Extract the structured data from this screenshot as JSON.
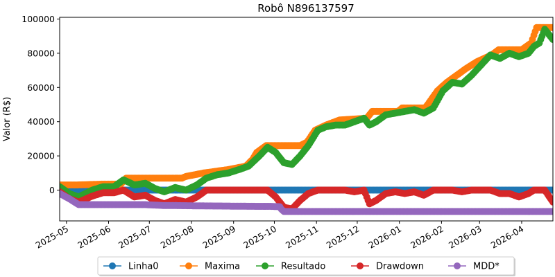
{
  "chart_data": {
    "type": "line",
    "title": "Robô N896137597",
    "xlabel": "",
    "ylabel": "Valor (R$)",
    "xlim": [
      "2025-04-26",
      "2026-04-24"
    ],
    "ylim": [
      -18000,
      101000
    ],
    "x_ticks": [
      "2025-05",
      "2025-06",
      "2025-07",
      "2025-08",
      "2025-09",
      "2025-10",
      "2025-11",
      "2025-12",
      "2026-01",
      "2026-02",
      "2026-03",
      "2026-04"
    ],
    "y_ticks": [
      0,
      20000,
      40000,
      60000,
      80000,
      100000
    ],
    "y_tick_labels": [
      "0",
      "20000",
      "40000",
      "60000",
      "80000",
      "100000"
    ],
    "grid": false,
    "legend_position": "bottom-center",
    "series": [
      {
        "name": "Linha0",
        "color": "#1f77b4",
        "x": [
          "2025-04-26",
          "2026-04-24"
        ],
        "values": [
          0,
          0
        ]
      },
      {
        "name": "Maxima",
        "color": "#ff7f0e",
        "x": [
          "2025-04-26",
          "2025-05-08",
          "2025-05-28",
          "2025-06-10",
          "2025-06-14",
          "2025-07-25",
          "2025-07-28",
          "2025-08-10",
          "2025-08-28",
          "2025-09-10",
          "2025-09-15",
          "2025-09-18",
          "2025-09-25",
          "2025-10-20",
          "2025-10-25",
          "2025-10-31",
          "2025-11-08",
          "2025-11-18",
          "2025-12-08",
          "2025-12-12",
          "2025-12-31",
          "2026-01-03",
          "2026-01-20",
          "2026-01-29",
          "2026-02-05",
          "2026-02-12",
          "2026-02-19",
          "2026-02-27",
          "2026-03-10",
          "2026-03-15",
          "2026-04-01",
          "2026-04-08",
          "2026-04-12",
          "2026-04-24"
        ],
        "values": [
          3000,
          3000,
          3500,
          3500,
          7000,
          7000,
          8000,
          10000,
          12000,
          14000,
          18000,
          22000,
          26000,
          26000,
          28000,
          35000,
          38000,
          41000,
          42000,
          46000,
          46000,
          48000,
          48000,
          58000,
          63000,
          67000,
          71000,
          75000,
          79000,
          82000,
          82000,
          86000,
          95000,
          95000
        ]
      },
      {
        "name": "Resultado",
        "color": "#2ca02c",
        "x": [
          "2025-04-26",
          "2025-05-03",
          "2025-05-10",
          "2025-05-20",
          "2025-05-28",
          "2025-06-05",
          "2025-06-12",
          "2025-06-20",
          "2025-06-28",
          "2025-07-05",
          "2025-07-12",
          "2025-07-20",
          "2025-07-28",
          "2025-08-05",
          "2025-08-12",
          "2025-08-20",
          "2025-08-28",
          "2025-09-05",
          "2025-09-12",
          "2025-09-20",
          "2025-09-26",
          "2025-10-02",
          "2025-10-08",
          "2025-10-14",
          "2025-10-20",
          "2025-10-26",
          "2025-11-02",
          "2025-11-08",
          "2025-11-15",
          "2025-11-22",
          "2025-11-29",
          "2025-12-06",
          "2025-12-10",
          "2025-12-15",
          "2025-12-22",
          "2025-12-29",
          "2026-01-05",
          "2026-01-12",
          "2026-01-19",
          "2026-01-26",
          "2026-02-02",
          "2026-02-09",
          "2026-02-16",
          "2026-02-23",
          "2026-03-02",
          "2026-03-09",
          "2026-03-16",
          "2026-03-23",
          "2026-03-30",
          "2026-04-06",
          "2026-04-10",
          "2026-04-14",
          "2026-04-18",
          "2026-04-24"
        ],
        "values": [
          2000,
          -2000,
          -4000,
          0,
          2000,
          2000,
          6000,
          3000,
          4000,
          1000,
          -1000,
          1500,
          0,
          3000,
          7000,
          9000,
          10000,
          12000,
          14000,
          20000,
          25000,
          22000,
          16000,
          15000,
          20000,
          26000,
          35000,
          37000,
          38000,
          38000,
          40000,
          42000,
          38000,
          40000,
          44000,
          45000,
          46000,
          47000,
          45000,
          48000,
          58000,
          63000,
          62000,
          67000,
          73000,
          79000,
          77000,
          80000,
          78000,
          80000,
          84000,
          86000,
          94000,
          88000
        ]
      },
      {
        "name": "Drawdown",
        "color": "#d62728",
        "x": [
          "2025-04-26",
          "2025-05-03",
          "2025-05-10",
          "2025-05-20",
          "2025-05-28",
          "2025-06-05",
          "2025-06-12",
          "2025-06-20",
          "2025-06-28",
          "2025-07-05",
          "2025-07-12",
          "2025-07-20",
          "2025-07-28",
          "2025-08-05",
          "2025-08-12",
          "2025-08-20",
          "2025-08-28",
          "2025-09-05",
          "2025-09-12",
          "2025-09-20",
          "2025-09-26",
          "2025-10-02",
          "2025-10-08",
          "2025-10-14",
          "2025-10-20",
          "2025-10-26",
          "2025-11-02",
          "2025-11-08",
          "2025-11-15",
          "2025-11-22",
          "2025-11-29",
          "2025-12-06",
          "2025-12-10",
          "2025-12-15",
          "2025-12-22",
          "2025-12-29",
          "2026-01-05",
          "2026-01-12",
          "2026-01-19",
          "2026-01-26",
          "2026-02-02",
          "2026-02-09",
          "2026-02-16",
          "2026-02-23",
          "2026-03-02",
          "2026-03-09",
          "2026-03-16",
          "2026-03-23",
          "2026-03-30",
          "2026-04-06",
          "2026-04-10",
          "2026-04-14",
          "2026-04-18",
          "2026-04-24"
        ],
        "values": [
          -1000,
          -5000,
          -7000,
          -3500,
          -1500,
          -1500,
          0,
          -4000,
          -3000,
          -6000,
          -8000,
          -5500,
          -7000,
          -4000,
          0,
          0,
          0,
          0,
          0,
          0,
          0,
          -4000,
          -10000,
          -11000,
          -6000,
          -2000,
          0,
          0,
          0,
          0,
          -1000,
          0,
          -8000,
          -6000,
          -2000,
          -1000,
          -2000,
          -1000,
          -3000,
          0,
          0,
          0,
          -1000,
          0,
          0,
          0,
          -2000,
          -2000,
          -4000,
          -2000,
          0,
          0,
          0,
          -7000
        ]
      },
      {
        "name": "MDD*",
        "color": "#9467bd",
        "x": [
          "2025-04-26",
          "2025-05-03",
          "2025-05-10",
          "2025-06-28",
          "2025-07-12",
          "2025-07-18",
          "2025-08-05",
          "2025-09-20",
          "2025-09-28",
          "2025-10-05",
          "2025-10-06",
          "2025-10-08",
          "2026-04-24"
        ],
        "values": [
          -2000,
          -5000,
          -8500,
          -8500,
          -9000,
          -9000,
          -9200,
          -9500,
          -9500,
          -9700,
          -11000,
          -12500,
          -12500
        ]
      }
    ]
  }
}
